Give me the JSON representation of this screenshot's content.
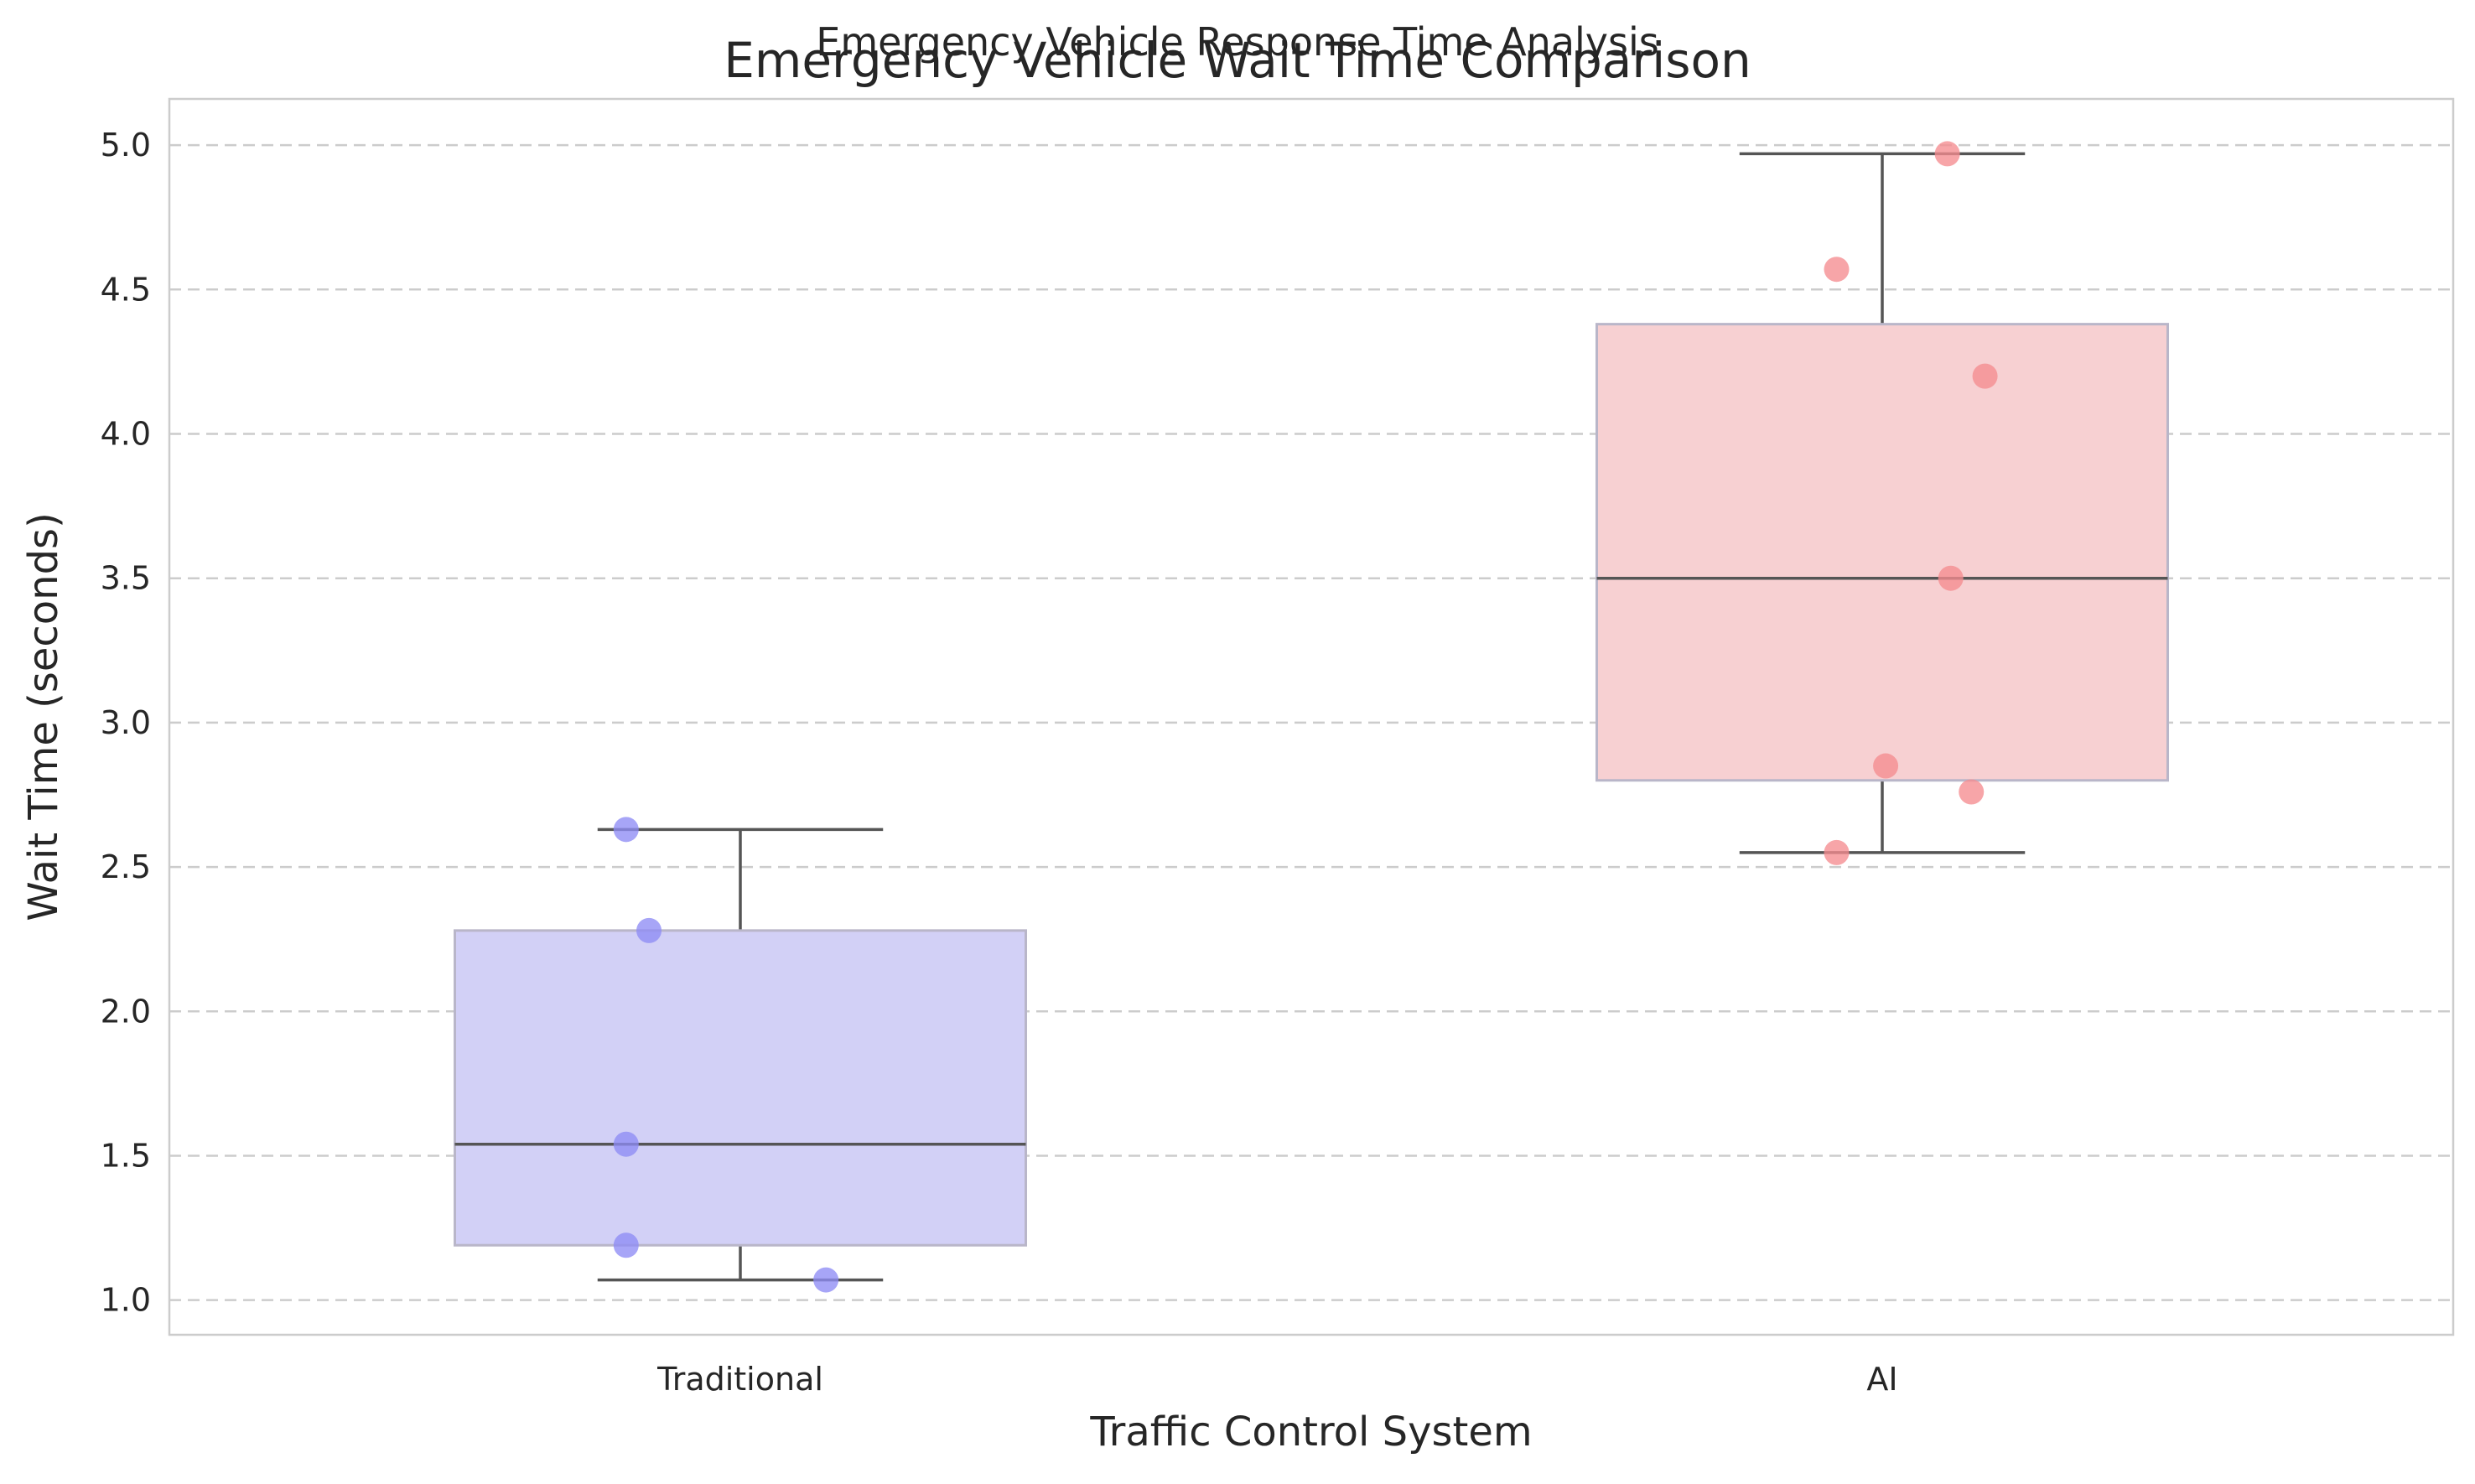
{
  "chart_data": {
    "type": "box",
    "suptitle": "Emergency Vehicle Response Time Analysis",
    "title": "Emergency Vehicle Wait Time Comparison",
    "xlabel": "Traffic Control System",
    "ylabel": "Wait Time (seconds)",
    "ylim": [
      0.88,
      5.16
    ],
    "yticks": [
      1.0,
      1.5,
      2.0,
      2.5,
      3.0,
      3.5,
      4.0,
      4.5,
      5.0
    ],
    "ytick_labels": [
      "1.0",
      "1.5",
      "2.0",
      "2.5",
      "3.0",
      "3.5",
      "4.0",
      "4.5",
      "5.0"
    ],
    "grid": true,
    "categories": [
      "Traditional",
      "AI"
    ],
    "boxes": [
      {
        "category": "Traditional",
        "whisker_low": 1.07,
        "q1": 1.19,
        "median": 1.54,
        "q3": 2.28,
        "whisker_high": 2.63,
        "fill": "#d2d0f6",
        "point_color": "#8e8cf5",
        "points": [
          {
            "jitter": -0.1,
            "y": 2.63
          },
          {
            "jitter": -0.08,
            "y": 2.28
          },
          {
            "jitter": -0.1,
            "y": 1.54
          },
          {
            "jitter": -0.1,
            "y": 1.19
          },
          {
            "jitter": 0.075,
            "y": 1.07
          }
        ]
      },
      {
        "category": "AI",
        "whisker_low": 2.55,
        "q1": 2.8,
        "median": 3.5,
        "q3": 4.38,
        "whisker_high": 4.97,
        "fill": "#f7d0d2",
        "point_color": "#f58c8f",
        "points": [
          {
            "jitter": 0.057,
            "y": 4.97
          },
          {
            "jitter": -0.04,
            "y": 4.57
          },
          {
            "jitter": 0.09,
            "y": 4.2
          },
          {
            "jitter": 0.06,
            "y": 3.5
          },
          {
            "jitter": 0.003,
            "y": 2.85
          },
          {
            "jitter": 0.078,
            "y": 2.76
          },
          {
            "jitter": -0.04,
            "y": 2.55
          }
        ]
      }
    ]
  }
}
